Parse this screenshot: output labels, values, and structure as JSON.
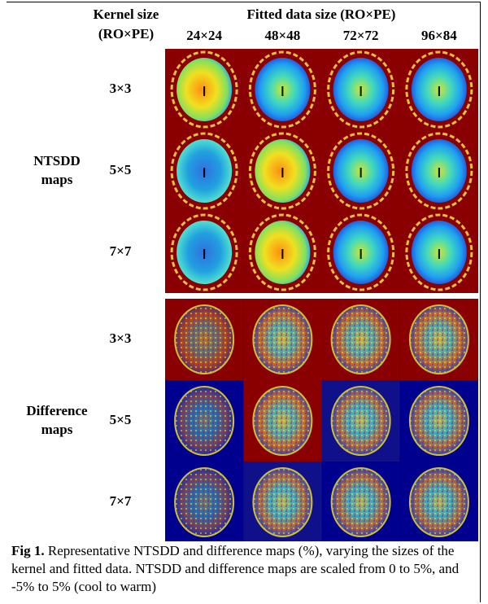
{
  "header": {
    "kernel_size": "Kernel size",
    "kernel_dims": "(RO×PE)",
    "fitted_size": "Fitted data size (RO×PE)",
    "columns": [
      "24×24",
      "48×48",
      "72×72",
      "96×84"
    ]
  },
  "sections": [
    {
      "label_lines": [
        "NTSDD",
        "maps"
      ],
      "rows": [
        "3×3",
        "5×5",
        "7×7"
      ]
    },
    {
      "label_lines": [
        "Difference",
        "maps"
      ],
      "rows": [
        "3×3",
        "5×5",
        "7×7"
      ]
    }
  ],
  "caption": {
    "label": "Fig 1.",
    "text": "Representative NTSDD and difference maps (%), varying the sizes of the kernel and fitted data. NTSDD and difference maps are scaled from 0 to 5%, and -5% to 5% (cool to warm)"
  }
}
